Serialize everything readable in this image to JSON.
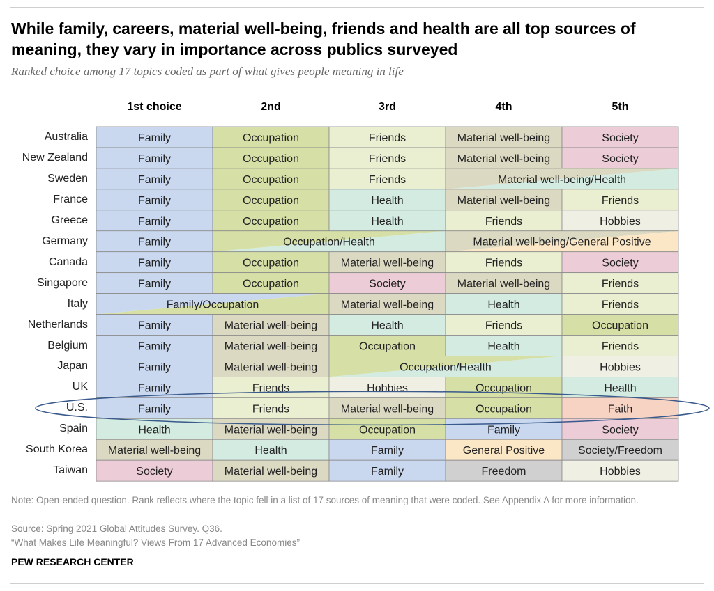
{
  "title": "While family, careers, material well-being, friends and health are all top sources of meaning, they vary in importance across publics surveyed",
  "subtitle": "Ranked choice among 17 topics coded as part of what gives people meaning in life",
  "colors": {
    "Family": "#c9d8ef",
    "Occupation": "#d6e0a6",
    "Friends": "#eaefd1",
    "Material well-being": "#dcd9c3",
    "Society": "#ecccd6",
    "Health": "#d3ebe1",
    "Hobbies": "#f0efe3",
    "General Positive": "#fbe7c6",
    "Faith": "#f7d3c3",
    "Freedom": "#d0d0d0",
    "Society/Freedom": "#d0d0d0"
  },
  "highlight": {
    "row": "U.S.",
    "color": "#3a5a8c"
  },
  "note": "Note: Open-ended question. Rank reflects where the topic fell in a list of 17 sources of meaning that were coded. See Appendix A for more information.",
  "source": "Source: Spring 2021 Global Attitudes Survey. Q36.",
  "report": "“What Makes Life Meaningful? Views From 17 Advanced Economies”",
  "brand": "PEW RESEARCH CENTER",
  "chart_data": {
    "type": "table",
    "columns": [
      "1st choice",
      "2nd",
      "3rd",
      "4th",
      "5th"
    ],
    "rows": [
      {
        "country": "Australia",
        "cells": [
          {
            "label": "Family",
            "span": 1
          },
          {
            "label": "Occupation",
            "span": 1
          },
          {
            "label": "Friends",
            "span": 1
          },
          {
            "label": "Material well-being",
            "span": 1
          },
          {
            "label": "Society",
            "span": 1
          }
        ]
      },
      {
        "country": "New Zealand",
        "cells": [
          {
            "label": "Family",
            "span": 1
          },
          {
            "label": "Occupation",
            "span": 1
          },
          {
            "label": "Friends",
            "span": 1
          },
          {
            "label": "Material well-being",
            "span": 1
          },
          {
            "label": "Society",
            "span": 1
          }
        ]
      },
      {
        "country": "Sweden",
        "cells": [
          {
            "label": "Family",
            "span": 1
          },
          {
            "label": "Occupation",
            "span": 1
          },
          {
            "label": "Friends",
            "span": 1
          },
          {
            "label": "Material well-being/Health",
            "span": 2,
            "blend": [
              "Material well-being",
              "Health"
            ]
          }
        ]
      },
      {
        "country": "France",
        "cells": [
          {
            "label": "Family",
            "span": 1
          },
          {
            "label": "Occupation",
            "span": 1
          },
          {
            "label": "Health",
            "span": 1
          },
          {
            "label": "Material well-being",
            "span": 1
          },
          {
            "label": "Friends",
            "span": 1
          }
        ]
      },
      {
        "country": "Greece",
        "cells": [
          {
            "label": "Family",
            "span": 1
          },
          {
            "label": "Occupation",
            "span": 1
          },
          {
            "label": "Health",
            "span": 1
          },
          {
            "label": "Friends",
            "span": 1
          },
          {
            "label": "Hobbies",
            "span": 1
          }
        ]
      },
      {
        "country": "Germany",
        "cells": [
          {
            "label": "Family",
            "span": 1
          },
          {
            "label": "Occupation/Health",
            "span": 2,
            "blend": [
              "Occupation",
              "Health"
            ]
          },
          {
            "label": "Material well-being/General Positive",
            "span": 2,
            "blend": [
              "Material well-being",
              "General Positive"
            ]
          }
        ]
      },
      {
        "country": "Canada",
        "cells": [
          {
            "label": "Family",
            "span": 1
          },
          {
            "label": "Occupation",
            "span": 1
          },
          {
            "label": "Material well-being",
            "span": 1
          },
          {
            "label": "Friends",
            "span": 1
          },
          {
            "label": "Society",
            "span": 1
          }
        ]
      },
      {
        "country": "Singapore",
        "cells": [
          {
            "label": "Family",
            "span": 1
          },
          {
            "label": "Occupation",
            "span": 1
          },
          {
            "label": "Society",
            "span": 1
          },
          {
            "label": "Material well-being",
            "span": 1
          },
          {
            "label": "Friends",
            "span": 1
          }
        ]
      },
      {
        "country": "Italy",
        "cells": [
          {
            "label": "Family/Occupation",
            "span": 2,
            "blend": [
              "Family",
              "Occupation"
            ]
          },
          {
            "label": "Material well-being",
            "span": 1
          },
          {
            "label": "Health",
            "span": 1
          },
          {
            "label": "Friends",
            "span": 1
          }
        ]
      },
      {
        "country": "Netherlands",
        "cells": [
          {
            "label": "Family",
            "span": 1
          },
          {
            "label": "Material well-being",
            "span": 1
          },
          {
            "label": "Health",
            "span": 1
          },
          {
            "label": "Friends",
            "span": 1
          },
          {
            "label": "Occupation",
            "span": 1
          }
        ]
      },
      {
        "country": "Belgium",
        "cells": [
          {
            "label": "Family",
            "span": 1
          },
          {
            "label": "Material well-being",
            "span": 1
          },
          {
            "label": "Occupation",
            "span": 1
          },
          {
            "label": "Health",
            "span": 1
          },
          {
            "label": "Friends",
            "span": 1
          }
        ]
      },
      {
        "country": "Japan",
        "cells": [
          {
            "label": "Family",
            "span": 1
          },
          {
            "label": "Material well-being",
            "span": 1
          },
          {
            "label": "Occupation/Health",
            "span": 2,
            "blend": [
              "Occupation",
              "Health"
            ]
          },
          {
            "label": "Hobbies",
            "span": 1
          }
        ]
      },
      {
        "country": "UK",
        "cells": [
          {
            "label": "Family",
            "span": 1
          },
          {
            "label": "Friends",
            "span": 1
          },
          {
            "label": "Hobbies",
            "span": 1
          },
          {
            "label": "Occupation",
            "span": 1
          },
          {
            "label": "Health",
            "span": 1
          }
        ]
      },
      {
        "country": "U.S.",
        "cells": [
          {
            "label": "Family",
            "span": 1
          },
          {
            "label": "Friends",
            "span": 1
          },
          {
            "label": "Material well-being",
            "span": 1
          },
          {
            "label": "Occupation",
            "span": 1
          },
          {
            "label": "Faith",
            "span": 1
          }
        ]
      },
      {
        "country": "Spain",
        "cells": [
          {
            "label": "Health",
            "span": 1
          },
          {
            "label": "Material well-being",
            "span": 1
          },
          {
            "label": "Occupation",
            "span": 1
          },
          {
            "label": "Family",
            "span": 1
          },
          {
            "label": "Society",
            "span": 1
          }
        ]
      },
      {
        "country": "South Korea",
        "cells": [
          {
            "label": "Material well-being",
            "span": 1
          },
          {
            "label": "Health",
            "span": 1
          },
          {
            "label": "Family",
            "span": 1
          },
          {
            "label": "General Positive",
            "span": 1
          },
          {
            "label": "Society/Freedom",
            "span": 1,
            "blend": [
              "Society",
              "Freedom"
            ]
          }
        ]
      },
      {
        "country": "Taiwan",
        "cells": [
          {
            "label": "Society",
            "span": 1
          },
          {
            "label": "Material well-being",
            "span": 1
          },
          {
            "label": "Family",
            "span": 1
          },
          {
            "label": "Freedom",
            "span": 1
          },
          {
            "label": "Hobbies",
            "span": 1
          }
        ]
      }
    ]
  }
}
